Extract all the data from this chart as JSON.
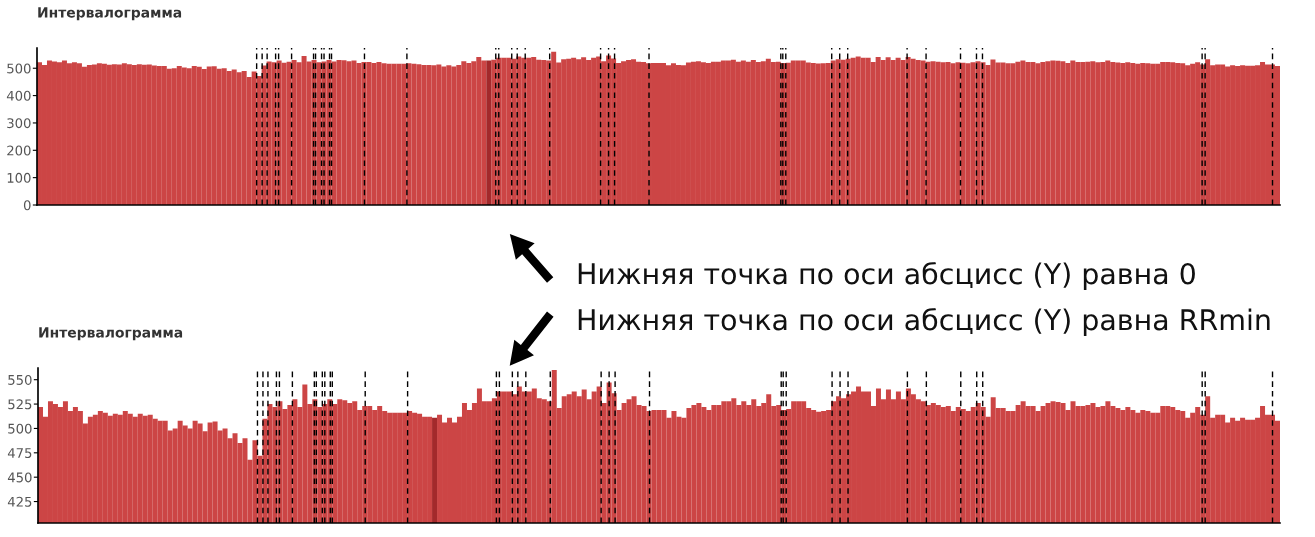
{
  "chart_data": [
    {
      "type": "bar",
      "title": "Интервалограмма",
      "tick_labels": "y",
      "categories": [
        null,
        null,
        null,
        null,
        null,
        null,
        null,
        null,
        null,
        null,
        null,
        null,
        null,
        null,
        null,
        null,
        null,
        null,
        null,
        null,
        null,
        null,
        null,
        null,
        null,
        null,
        null,
        null,
        null,
        null,
        null,
        null,
        null,
        null,
        null,
        null,
        null,
        null,
        null,
        null,
        null,
        null,
        null,
        null,
        null,
        null,
        null,
        null,
        null,
        null,
        null,
        null,
        null,
        null,
        null,
        null,
        null,
        null,
        null,
        null,
        null,
        null,
        null,
        null,
        null,
        null,
        null,
        null,
        null,
        null,
        null,
        null,
        null,
        null,
        null,
        null,
        null,
        null,
        null,
        null,
        null,
        null,
        null,
        null,
        null,
        null,
        null,
        null,
        null,
        null,
        null,
        null,
        null,
        null,
        null,
        null,
        null,
        null,
        null,
        null,
        null,
        null,
        null,
        null,
        null,
        null,
        null,
        null,
        null,
        null,
        null,
        null,
        null,
        null,
        null,
        null,
        null,
        null,
        null,
        null,
        null,
        null,
        null,
        null,
        null,
        null,
        null,
        null,
        null,
        null,
        null,
        null,
        null,
        null,
        null,
        null,
        null,
        null,
        null,
        null,
        null,
        null,
        null,
        null,
        null,
        null,
        null,
        null,
        null,
        null,
        null,
        null,
        null,
        null,
        null,
        null,
        null,
        null,
        null,
        null,
        null,
        null,
        null,
        null,
        null,
        null,
        null,
        null,
        null,
        null,
        null,
        null,
        null,
        null,
        null,
        null,
        null,
        null,
        null,
        null,
        null,
        null,
        null,
        null,
        null,
        null,
        null,
        null,
        null,
        null,
        null,
        null,
        null,
        null,
        null,
        null,
        null,
        null,
        null,
        null,
        null,
        null,
        null,
        null,
        null,
        null,
        null,
        null,
        null,
        null,
        null,
        null,
        null,
        null,
        null,
        null,
        null,
        null,
        null,
        null,
        null,
        null,
        null,
        null,
        null,
        null,
        null,
        null,
        null,
        null,
        null,
        null,
        null,
        null,
        null,
        null,
        null,
        null,
        null,
        null,
        null,
        null,
        null,
        null,
        null,
        null,
        null,
        null,
        null
      ],
      "series": [
        {
          "color": "#cc4545",
          "values": [
            522,
            512,
            528,
            525,
            522,
            528,
            518,
            522,
            518,
            505,
            512,
            514,
            518,
            516,
            513,
            515,
            514,
            518,
            515,
            512,
            515,
            513,
            514,
            510,
            508,
            508,
            498,
            500,
            508,
            503,
            500,
            508,
            505,
            497,
            506,
            507,
            498,
            500,
            490,
            495,
            485,
            490,
            468,
            488,
            472,
            510,
            525,
            522,
            528,
            520,
            524,
            530,
            522,
            545,
            525,
            530,
            522,
            525,
            530,
            525,
            530,
            529,
            526,
            528,
            519,
            523,
            523,
            519,
            523,
            518,
            516,
            516,
            516,
            516,
            518,
            516,
            515,
            512,
            512,
            511,
            514,
            506,
            511,
            506,
            512,
            526,
            519,
            526,
            541,
            528,
            null,
            531,
            538,
            538,
            538,
            535,
            543,
            538,
            538,
            541,
            531,
            530,
            528,
            560,
            521,
            533,
            535,
            538,
            533,
            540,
            530,
            538,
            543,
            526,
            547,
            536,
            519,
            526,
            530,
            533,
            524,
            523,
            518,
            519,
            519,
            519,
            511,
            518,
            512,
            511,
            521,
            524,
            526,
            522,
            519,
            524,
            524,
            528,
            528,
            531,
            524,
            528,
            524,
            530,
            523,
            526,
            535,
            523,
            524,
            519,
            520,
            528,
            528,
            528,
            521,
            519,
            517,
            518,
            519,
            528,
            533,
            531,
            535,
            538,
            543,
            538,
            538,
            523,
            541,
            530,
            540,
            530,
            538,
            530,
            541,
            535,
            530,
            528,
            524,
            526,
            524,
            522,
            523,
            518,
            522,
            520,
            518,
            522,
            526,
            522,
            512,
            532,
            521,
            521,
            518,
            518,
            524,
            528,
            523,
            523,
            518,
            523,
            526,
            528,
            527,
            526,
            519,
            528,
            523,
            523,
            524,
            526,
            522,
            523,
            528,
            523,
            521,
            519,
            522,
            519,
            516,
            519,
            518,
            516,
            516,
            523,
            523,
            522,
            519,
            518,
            511,
            516,
            522,
            514,
            533,
            511,
            514,
            514,
            506,
            511,
            508,
            511,
            509,
            509,
            511,
            523,
            514,
            514,
            508
          ]
        },
        {
          "color": "#a3292b",
          "values": [
            null,
            null,
            null,
            null,
            null,
            null,
            null,
            null,
            null,
            null,
            null,
            null,
            null,
            null,
            null,
            null,
            null,
            null,
            null,
            null,
            null,
            null,
            null,
            null,
            null,
            null,
            null,
            null,
            null,
            null,
            null,
            null,
            null,
            null,
            null,
            null,
            null,
            null,
            null,
            null,
            null,
            null,
            null,
            null,
            null,
            null,
            null,
            null,
            null,
            null,
            null,
            null,
            null,
            null,
            null,
            null,
            null,
            null,
            null,
            null,
            null,
            null,
            null,
            null,
            null,
            null,
            null,
            null,
            null,
            null,
            null,
            null,
            null,
            null,
            null,
            null,
            null,
            null,
            null,
            null,
            null,
            null,
            null,
            null,
            null,
            null,
            null,
            null,
            null,
            null,
            528,
            null,
            null,
            null,
            null,
            null,
            null,
            null,
            null,
            null,
            null,
            null,
            null,
            null,
            null,
            null,
            null,
            null,
            null,
            null,
            null,
            null,
            null,
            null,
            null,
            null,
            null,
            null,
            null,
            null,
            null,
            null,
            null,
            null,
            null,
            null,
            null,
            null,
            null,
            null,
            null,
            null,
            null,
            null,
            null,
            null,
            null,
            null,
            null,
            null,
            null,
            null,
            null,
            null,
            null,
            null,
            null,
            null,
            null,
            null,
            null,
            null,
            null,
            null,
            null,
            null,
            null,
            null,
            null,
            null,
            null,
            null,
            null,
            null,
            null,
            null,
            null,
            null,
            null,
            null,
            null,
            null,
            null,
            null,
            null,
            null,
            null,
            null,
            null,
            null,
            null,
            null,
            null,
            null,
            null,
            null,
            null,
            null,
            null,
            null,
            null,
            null,
            null,
            null,
            null,
            null,
            null,
            null,
            null,
            null,
            null,
            null,
            null,
            null,
            null,
            null,
            null,
            null,
            null,
            null,
            null,
            null,
            null,
            null,
            null,
            null,
            null,
            null,
            null,
            null,
            null,
            null,
            null,
            null,
            null,
            null,
            null,
            null,
            null,
            null,
            null,
            null,
            null,
            null,
            null,
            null,
            null,
            null,
            null,
            null,
            null,
            null,
            null,
            null,
            null,
            null,
            null,
            null,
            null
          ]
        }
      ],
      "ylim": [
        0,
        574
      ],
      "yticks": [
        0,
        100,
        200,
        300,
        400,
        500
      ],
      "annotations": [
        "Нижняя точка по оси абсцисс (Y) равна 0"
      ]
    },
    {
      "type": "bar",
      "title": "Интервалограмма",
      "tick_labels": "y",
      "categories": [
        null,
        null,
        null,
        null,
        null,
        null,
        null,
        null,
        null,
        null,
        null,
        null,
        null,
        null,
        null,
        null,
        null,
        null,
        null,
        null,
        null,
        null,
        null,
        null,
        null,
        null,
        null,
        null,
        null,
        null,
        null,
        null,
        null,
        null,
        null,
        null,
        null,
        null,
        null,
        null,
        null,
        null,
        null,
        null,
        null,
        null,
        null,
        null,
        null,
        null,
        null,
        null,
        null,
        null,
        null,
        null,
        null,
        null,
        null,
        null,
        null,
        null,
        null,
        null,
        null,
        null,
        null,
        null,
        null,
        null,
        null,
        null,
        null,
        null,
        null,
        null,
        null,
        null,
        null,
        null,
        null,
        null,
        null,
        null,
        null,
        null,
        null,
        null,
        null,
        null,
        null,
        null,
        null,
        null,
        null,
        null,
        null,
        null,
        null,
        null,
        null,
        null,
        null,
        null,
        null,
        null,
        null,
        null,
        null,
        null,
        null,
        null,
        null,
        null,
        null,
        null,
        null,
        null,
        null,
        null,
        null,
        null,
        null,
        null,
        null,
        null,
        null,
        null,
        null,
        null,
        null,
        null,
        null,
        null,
        null,
        null,
        null,
        null,
        null,
        null,
        null,
        null,
        null,
        null,
        null,
        null,
        null,
        null,
        null,
        null,
        null,
        null,
        null,
        null,
        null,
        null,
        null,
        null,
        null,
        null,
        null,
        null,
        null,
        null,
        null,
        null,
        null,
        null,
        null,
        null,
        null,
        null,
        null,
        null,
        null,
        null,
        null,
        null,
        null,
        null,
        null,
        null,
        null,
        null,
        null,
        null,
        null,
        null,
        null,
        null,
        null,
        null,
        null,
        null,
        null,
        null,
        null,
        null,
        null,
        null,
        null,
        null,
        null,
        null,
        null,
        null,
        null,
        null,
        null,
        null,
        null,
        null,
        null,
        null,
        null,
        null,
        null,
        null,
        null,
        null,
        null,
        null,
        null,
        null,
        null,
        null,
        null,
        null,
        null,
        null,
        null,
        null,
        null,
        null,
        null,
        null,
        null,
        null,
        null,
        null,
        null,
        null,
        null,
        null,
        null,
        null,
        null,
        null,
        null
      ],
      "series": [
        {
          "color": "#cc4545",
          "values": [
            522,
            512,
            528,
            525,
            522,
            528,
            518,
            522,
            518,
            505,
            512,
            514,
            518,
            516,
            513,
            515,
            514,
            518,
            515,
            512,
            515,
            513,
            514,
            510,
            508,
            508,
            498,
            500,
            508,
            503,
            500,
            508,
            505,
            497,
            506,
            507,
            498,
            500,
            490,
            495,
            485,
            490,
            468,
            488,
            472,
            510,
            525,
            522,
            528,
            520,
            524,
            530,
            522,
            545,
            525,
            530,
            522,
            525,
            530,
            525,
            530,
            529,
            526,
            528,
            519,
            523,
            523,
            519,
            523,
            518,
            516,
            516,
            516,
            516,
            518,
            516,
            515,
            512,
            512,
            null,
            514,
            506,
            511,
            506,
            512,
            526,
            519,
            526,
            541,
            528,
            528,
            531,
            538,
            538,
            538,
            535,
            543,
            538,
            538,
            541,
            531,
            530,
            528,
            560,
            521,
            533,
            535,
            538,
            533,
            540,
            530,
            538,
            543,
            526,
            547,
            536,
            519,
            526,
            530,
            533,
            524,
            523,
            518,
            519,
            519,
            519,
            511,
            518,
            512,
            511,
            521,
            524,
            526,
            522,
            519,
            524,
            524,
            528,
            528,
            531,
            524,
            528,
            524,
            530,
            523,
            526,
            535,
            523,
            524,
            519,
            520,
            528,
            528,
            528,
            521,
            519,
            517,
            518,
            519,
            528,
            533,
            531,
            535,
            538,
            543,
            538,
            538,
            523,
            541,
            530,
            540,
            530,
            538,
            530,
            541,
            535,
            530,
            528,
            524,
            526,
            524,
            522,
            523,
            518,
            522,
            520,
            518,
            522,
            526,
            522,
            512,
            532,
            521,
            521,
            518,
            518,
            524,
            528,
            523,
            523,
            518,
            523,
            526,
            528,
            527,
            526,
            519,
            528,
            523,
            523,
            524,
            526,
            522,
            523,
            528,
            523,
            521,
            519,
            522,
            519,
            516,
            519,
            518,
            516,
            516,
            523,
            523,
            522,
            519,
            518,
            511,
            516,
            522,
            514,
            533,
            511,
            514,
            514,
            506,
            511,
            508,
            511,
            509,
            509,
            511,
            523,
            514,
            514,
            508
          ]
        },
        {
          "color": "#a3292b",
          "values": [
            null,
            null,
            null,
            null,
            null,
            null,
            null,
            null,
            null,
            null,
            null,
            null,
            null,
            null,
            null,
            null,
            null,
            null,
            null,
            null,
            null,
            null,
            null,
            null,
            null,
            null,
            null,
            null,
            null,
            null,
            null,
            null,
            null,
            null,
            null,
            null,
            null,
            null,
            null,
            null,
            null,
            null,
            null,
            null,
            null,
            null,
            null,
            null,
            null,
            null,
            null,
            null,
            null,
            null,
            null,
            null,
            null,
            null,
            null,
            null,
            null,
            null,
            null,
            null,
            null,
            null,
            null,
            null,
            null,
            null,
            null,
            null,
            null,
            null,
            null,
            null,
            null,
            null,
            null,
            511,
            null,
            null,
            null,
            null,
            null,
            null,
            null,
            null,
            null,
            null,
            null,
            null,
            null,
            null,
            null,
            null,
            null,
            null,
            null,
            null,
            null,
            null,
            null,
            null,
            null,
            null,
            null,
            null,
            null,
            null,
            null,
            null,
            null,
            null,
            null,
            null,
            null,
            null,
            null,
            null,
            null,
            null,
            null,
            null,
            null,
            null,
            null,
            null,
            null,
            null,
            null,
            null,
            null,
            null,
            null,
            null,
            null,
            null,
            null,
            null,
            null,
            null,
            null,
            null,
            null,
            null,
            null,
            null,
            null,
            null,
            null,
            null,
            null,
            null,
            null,
            null,
            null,
            null,
            null,
            null,
            null,
            null,
            null,
            null,
            null,
            null,
            null,
            null,
            null,
            null,
            null,
            null,
            null,
            null,
            null,
            null,
            null,
            null,
            null,
            null,
            null,
            null,
            null,
            null,
            null,
            null,
            null,
            null,
            null,
            null,
            null,
            null,
            null,
            null,
            null,
            null,
            null,
            null,
            null,
            null,
            null,
            null,
            null,
            null,
            null,
            null,
            null,
            null,
            null,
            null,
            null,
            null,
            null,
            null,
            null,
            null,
            null,
            null,
            null,
            null,
            null,
            null,
            null,
            null,
            null,
            null,
            null,
            null,
            null,
            null,
            null,
            null,
            null,
            null,
            null,
            null,
            null,
            null,
            null,
            null,
            null,
            null,
            null,
            null,
            null,
            null,
            null,
            null,
            null
          ]
        }
      ],
      "ylim": [
        403,
        562
      ],
      "yticks": [
        425,
        450,
        475,
        500,
        525,
        550
      ],
      "annotations": [
        "Нижняя точка по оси абсцисс (Y) равна RRmin"
      ]
    }
  ]
}
